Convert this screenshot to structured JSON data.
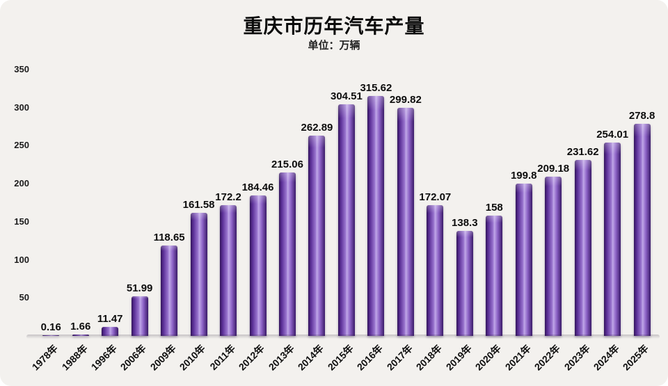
{
  "chart_data": {
    "type": "bar",
    "title": "重庆市历年汽车产量",
    "subtitle": "单位：万辆",
    "categories": [
      "1978年",
      "1988年",
      "1996年",
      "2006年",
      "2009年",
      "2010年",
      "2011年",
      "2012年",
      "2013年",
      "2014年",
      "2015年",
      "2016年",
      "2017年",
      "2018年",
      "2019年",
      "2020年",
      "2021年",
      "2022年",
      "2023年",
      "2024年",
      "2025年"
    ],
    "values": [
      0.16,
      1.66,
      11.47,
      51.99,
      118.65,
      161.58,
      172.2,
      184.46,
      215.06,
      262.89,
      304.51,
      315.62,
      299.82,
      172.07,
      138.3,
      158,
      199.8,
      209.18,
      231.62,
      254.01,
      278.8
    ],
    "value_labels": [
      "0.16",
      "1.66",
      "11.47",
      "51.99",
      "118.65",
      "161.58",
      "172.2",
      "184.46",
      "215.06",
      "262.89",
      "304.51",
      "315.62",
      "299.82",
      "172.07",
      "138.3",
      "158",
      "199.8",
      "209.18",
      "231.62",
      "254.01",
      "278.8"
    ],
    "xlabel": "",
    "ylabel": "",
    "ylim": [
      0,
      350
    ],
    "yticks": [
      50,
      100,
      150,
      200,
      250,
      300,
      350
    ],
    "grid": false,
    "legend": false,
    "bar_color_edge": "#33155c",
    "bar_color_center": "#c0a7e8",
    "background_color": "#f3f1ee",
    "text_color": "#0b0b0b"
  }
}
